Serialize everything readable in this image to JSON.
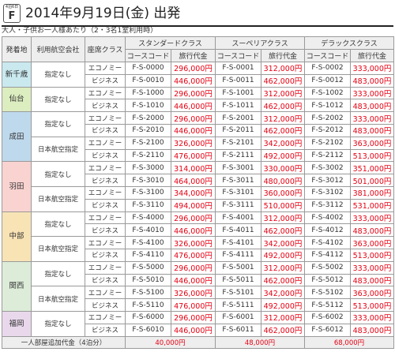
{
  "header": {
    "badge_small": "4泊6日",
    "badge_letter": "F",
    "title": "2014年9月19日(金) 出発"
  },
  "subtitle": "大人・子供お一人様あたり（2・3名1室利用時）",
  "colors": {
    "price": "#e60012",
    "shin-chitose": "#c9e9ef",
    "sendai": "#dcedc0",
    "narita": "#bfd9ec",
    "haneda": "#f9d3d0",
    "chubu": "#f8e3b5",
    "kansai": "#dcecd8",
    "fukuoka": "#e9d8ec"
  },
  "table": {
    "headers": {
      "departure": "発着地",
      "airline": "利用航空会社",
      "seat": "座席クラス",
      "classes": [
        "スタンダードクラス",
        "スーペリアクラス",
        "デラックスクラス"
      ],
      "course_code": "コースコード",
      "price": "旅行代金"
    },
    "groups": [
      {
        "departure": "新千歳",
        "color_key": "shin-chitose",
        "airlines": [
          {
            "name": "指定なし",
            "rows": [
              {
                "seat": "エコノミー",
                "cells": [
                  [
                    "F-S-0000",
                    "296,000円"
                  ],
                  [
                    "F-S-0001",
                    "312,000円"
                  ],
                  [
                    "F-S-0002",
                    "333,000円"
                  ]
                ]
              },
              {
                "seat": "ビジネス",
                "cells": [
                  [
                    "F-S-0010",
                    "446,000円"
                  ],
                  [
                    "F-S-0011",
                    "462,000円"
                  ],
                  [
                    "F-S-0012",
                    "483,000円"
                  ]
                ]
              }
            ]
          }
        ]
      },
      {
        "departure": "仙台",
        "color_key": "sendai",
        "airlines": [
          {
            "name": "指定なし",
            "rows": [
              {
                "seat": "エコノミー",
                "cells": [
                  [
                    "F-S-1000",
                    "296,000円"
                  ],
                  [
                    "F-S-1001",
                    "312,000円"
                  ],
                  [
                    "F-S-1002",
                    "333,000円"
                  ]
                ]
              },
              {
                "seat": "ビジネス",
                "cells": [
                  [
                    "F-S-1010",
                    "446,000円"
                  ],
                  [
                    "F-S-1011",
                    "462,000円"
                  ],
                  [
                    "F-S-1012",
                    "483,000円"
                  ]
                ]
              }
            ]
          }
        ]
      },
      {
        "departure": "成田",
        "color_key": "narita",
        "airlines": [
          {
            "name": "指定なし",
            "rows": [
              {
                "seat": "エコノミー",
                "cells": [
                  [
                    "F-S-2000",
                    "296,000円"
                  ],
                  [
                    "F-S-2001",
                    "312,000円"
                  ],
                  [
                    "F-S-2002",
                    "333,000円"
                  ]
                ]
              },
              {
                "seat": "ビジネス",
                "cells": [
                  [
                    "F-S-2010",
                    "446,000円"
                  ],
                  [
                    "F-S-2011",
                    "462,000円"
                  ],
                  [
                    "F-S-2012",
                    "483,000円"
                  ]
                ]
              }
            ]
          },
          {
            "name": "日本航空指定",
            "rows": [
              {
                "seat": "エコノミー",
                "cells": [
                  [
                    "F-S-2100",
                    "326,000円"
                  ],
                  [
                    "F-S-2101",
                    "342,000円"
                  ],
                  [
                    "F-S-2102",
                    "363,000円"
                  ]
                ]
              },
              {
                "seat": "ビジネス",
                "cells": [
                  [
                    "F-S-2110",
                    "476,000円"
                  ],
                  [
                    "F-S-2111",
                    "492,000円"
                  ],
                  [
                    "F-S-2112",
                    "513,000円"
                  ]
                ]
              }
            ]
          }
        ]
      },
      {
        "departure": "羽田",
        "color_key": "haneda",
        "airlines": [
          {
            "name": "指定なし",
            "rows": [
              {
                "seat": "エコノミー",
                "cells": [
                  [
                    "F-S-3000",
                    "314,000円"
                  ],
                  [
                    "F-S-3001",
                    "330,000円"
                  ],
                  [
                    "F-S-3002",
                    "351,000円"
                  ]
                ]
              },
              {
                "seat": "ビジネス",
                "cells": [
                  [
                    "F-S-3010",
                    "464,000円"
                  ],
                  [
                    "F-S-3011",
                    "480,000円"
                  ],
                  [
                    "F-S-3012",
                    "501,000円"
                  ]
                ]
              }
            ]
          },
          {
            "name": "日本航空指定",
            "rows": [
              {
                "seat": "エコノミー",
                "cells": [
                  [
                    "F-S-3100",
                    "344,000円"
                  ],
                  [
                    "F-S-3101",
                    "360,000円"
                  ],
                  [
                    "F-S-3102",
                    "381,000円"
                  ]
                ]
              },
              {
                "seat": "ビジネス",
                "cells": [
                  [
                    "F-S-3110",
                    "494,000円"
                  ],
                  [
                    "F-S-3111",
                    "510,000円"
                  ],
                  [
                    "F-S-3112",
                    "531,000円"
                  ]
                ]
              }
            ]
          }
        ]
      },
      {
        "departure": "中部",
        "color_key": "chubu",
        "airlines": [
          {
            "name": "指定なし",
            "rows": [
              {
                "seat": "エコノミー",
                "cells": [
                  [
                    "F-S-4000",
                    "296,000円"
                  ],
                  [
                    "F-S-4001",
                    "312,000円"
                  ],
                  [
                    "F-S-4002",
                    "333,000円"
                  ]
                ]
              },
              {
                "seat": "ビジネス",
                "cells": [
                  [
                    "F-S-4010",
                    "446,000円"
                  ],
                  [
                    "F-S-4011",
                    "462,000円"
                  ],
                  [
                    "F-S-4012",
                    "483,000円"
                  ]
                ]
              }
            ]
          },
          {
            "name": "日本航空指定",
            "rows": [
              {
                "seat": "エコノミー",
                "cells": [
                  [
                    "F-S-4100",
                    "326,000円"
                  ],
                  [
                    "F-S-4101",
                    "342,000円"
                  ],
                  [
                    "F-S-4102",
                    "363,000円"
                  ]
                ]
              },
              {
                "seat": "ビジネス",
                "cells": [
                  [
                    "F-S-4110",
                    "476,000円"
                  ],
                  [
                    "F-S-4111",
                    "492,000円"
                  ],
                  [
                    "F-S-4112",
                    "513,000円"
                  ]
                ]
              }
            ]
          }
        ]
      },
      {
        "departure": "関西",
        "color_key": "kansai",
        "airlines": [
          {
            "name": "指定なし",
            "rows": [
              {
                "seat": "エコノミー",
                "cells": [
                  [
                    "F-S-5000",
                    "296,000円"
                  ],
                  [
                    "F-S-5001",
                    "312,000円"
                  ],
                  [
                    "F-S-5002",
                    "333,000円"
                  ]
                ]
              },
              {
                "seat": "ビジネス",
                "cells": [
                  [
                    "F-S-5010",
                    "446,000円"
                  ],
                  [
                    "F-S-5011",
                    "462,000円"
                  ],
                  [
                    "F-S-5012",
                    "483,000円"
                  ]
                ]
              }
            ]
          },
          {
            "name": "日本航空指定",
            "rows": [
              {
                "seat": "エコノミー",
                "cells": [
                  [
                    "F-S-5100",
                    "326,000円"
                  ],
                  [
                    "F-S-5101",
                    "342,000円"
                  ],
                  [
                    "F-S-5102",
                    "363,000円"
                  ]
                ]
              },
              {
                "seat": "ビジネス",
                "cells": [
                  [
                    "F-S-5110",
                    "476,000円"
                  ],
                  [
                    "F-S-5111",
                    "492,000円"
                  ],
                  [
                    "F-S-5112",
                    "513,000円"
                  ]
                ]
              }
            ]
          }
        ]
      },
      {
        "departure": "福岡",
        "color_key": "fukuoka",
        "airlines": [
          {
            "name": "指定なし",
            "rows": [
              {
                "seat": "エコノミー",
                "cells": [
                  [
                    "F-S-6000",
                    "296,000円"
                  ],
                  [
                    "F-S-6001",
                    "312,000円"
                  ],
                  [
                    "F-S-6002",
                    "333,000円"
                  ]
                ]
              },
              {
                "seat": "ビジネス",
                "cells": [
                  [
                    "F-S-6010",
                    "446,000円"
                  ],
                  [
                    "F-S-6011",
                    "462,000円"
                  ],
                  [
                    "F-S-6012",
                    "483,000円"
                  ]
                ]
              }
            ]
          }
        ]
      }
    ],
    "footer": {
      "label": "一人部屋追加代金（4泊分）",
      "values": [
        "40,000円",
        "48,000円",
        "68,000円"
      ]
    }
  }
}
